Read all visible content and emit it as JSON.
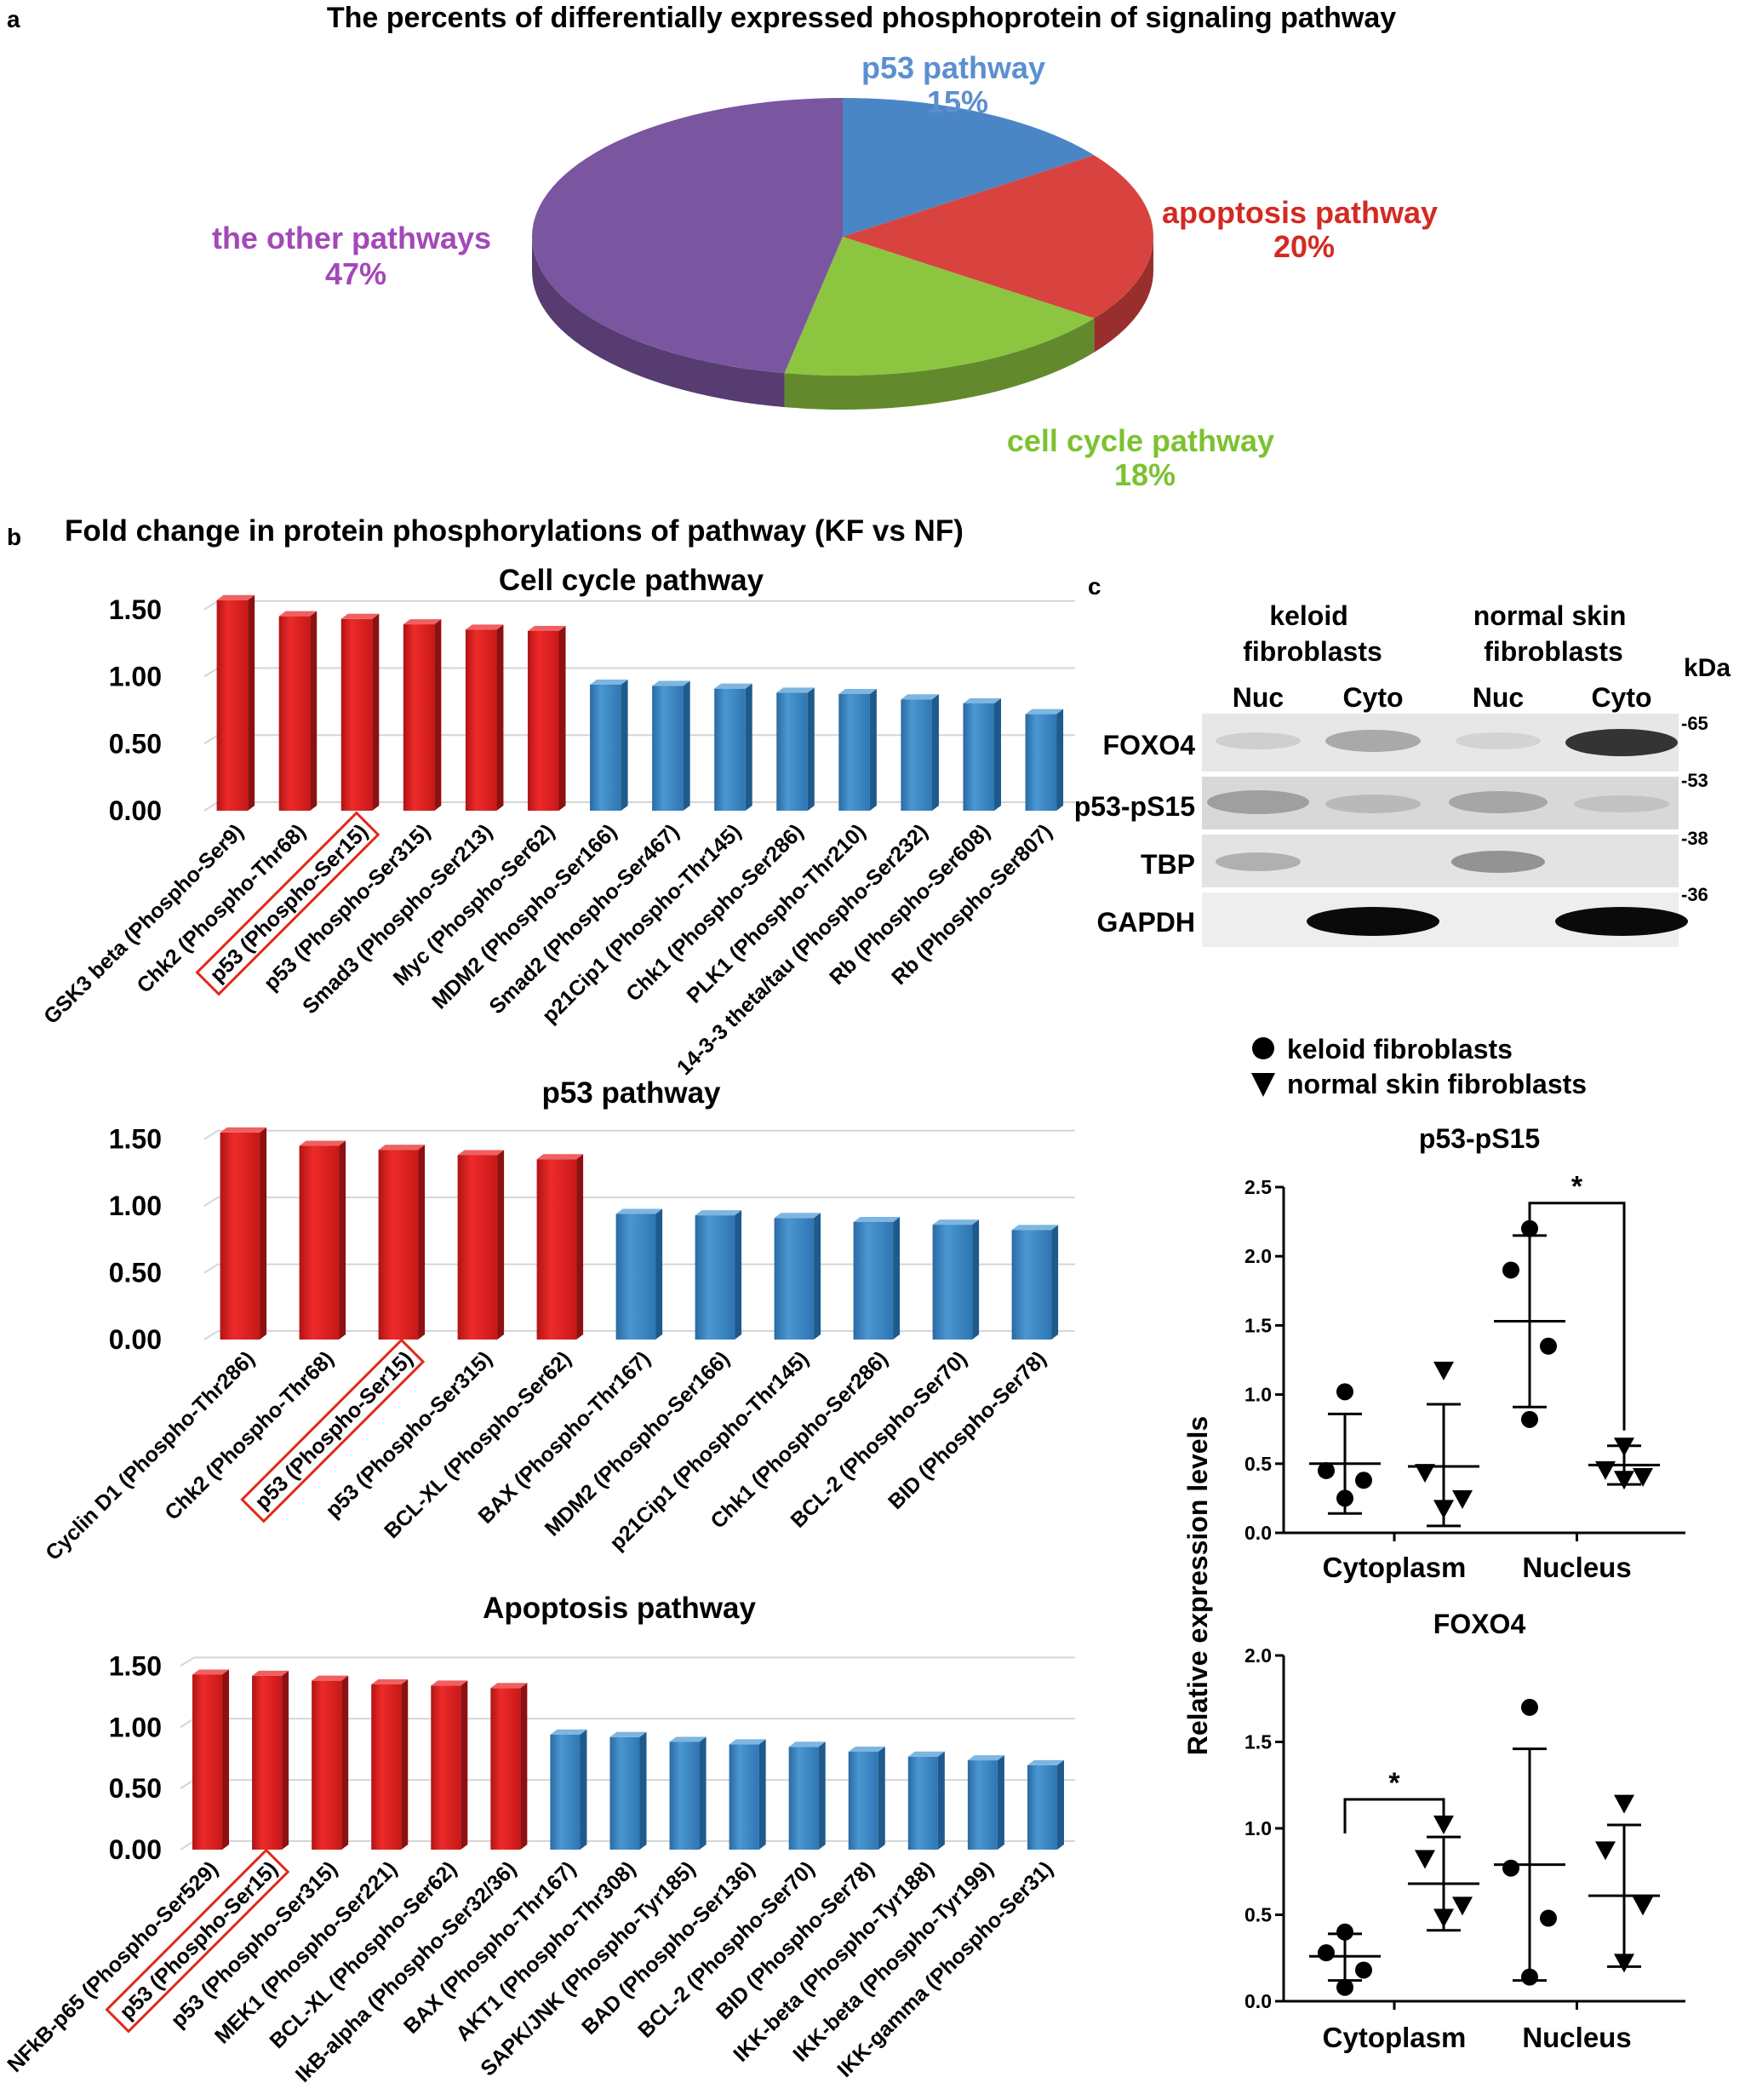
{
  "panel_a": {
    "letter": "a",
    "chart_data": {
      "type": "pie",
      "title": "The percents of differentially expressed phosphoprotein of signaling pathway",
      "slices": [
        {
          "label": "p53 pathway",
          "value": 15,
          "value_label": "15%",
          "color": "#4a86c5"
        },
        {
          "label": "apoptosis pathway",
          "value": 20,
          "value_label": "20%",
          "color": "#d9433f"
        },
        {
          "label": "cell cycle pathway",
          "value": 18,
          "value_label": "18%",
          "color": "#8cc540"
        },
        {
          "label": "the other pathways",
          "value": 47,
          "value_label": "47%",
          "color": "#7b56a0"
        }
      ]
    }
  },
  "panel_b": {
    "letter": "b",
    "heading": "Fold change in protein phosphorylations of pathway (KF vs NF)",
    "charts": [
      {
        "type": "bar",
        "title": "Cell cycle pathway",
        "yticks": [
          "0.00",
          "0.50",
          "1.00",
          "1.50"
        ],
        "ylim": [
          0,
          1.6
        ],
        "highlight_index": 2,
        "up_color": "#e02020",
        "down_color": "#3a87c4",
        "categories": [
          "GSK3 beta (Phospho-Ser9)",
          "Chk2 (Phospho-Thr68)",
          "p53 (Phospho-Ser15)",
          "p53 (Phospho-Ser315)",
          "Smad3 (Phospho-Ser213)",
          "Myc (Phospho-Ser62)",
          "MDM2 (Phospho-Ser166)",
          "Smad2 (Phospho-Ser467)",
          "p21Cip1 (Phospho-Thr145)",
          "Chk1 (Phospho-Ser286)",
          "PLK1 (Phospho-Thr210)",
          "14-3-3 theta/tau (Phospho-Ser232)",
          "Rb (Phospho-Ser608)",
          "Rb (Phospho-Ser807)"
        ],
        "values": [
          1.57,
          1.45,
          1.43,
          1.39,
          1.35,
          1.34,
          0.94,
          0.93,
          0.91,
          0.88,
          0.87,
          0.83,
          0.8,
          0.72
        ],
        "direction": [
          "up",
          "up",
          "up",
          "up",
          "up",
          "up",
          "down",
          "down",
          "down",
          "down",
          "down",
          "down",
          "down",
          "down"
        ]
      },
      {
        "type": "bar",
        "title": "p53 pathway",
        "yticks": [
          "0.00",
          "0.50",
          "1.00",
          "1.50"
        ],
        "ylim": [
          0,
          1.6
        ],
        "highlight_index": 2,
        "up_color": "#e02020",
        "down_color": "#3a87c4",
        "categories": [
          "Cyclin D1 (Phospho-Thr286)",
          "Chk2 (Phospho-Thr68)",
          "p53 (Phospho-Ser15)",
          "p53 (Phospho-Ser315)",
          "BCL-XL (Phospho-Ser62)",
          "BAX (Phospho-Thr167)",
          "MDM2 (Phospho-Ser166)",
          "p21Cip1 (Phospho-Thr145)",
          "Chk1 (Phospho-Ser286)",
          "BCL-2 (Phospho-Ser70)",
          "BID (Phospho-Ser78)"
        ],
        "values": [
          1.55,
          1.45,
          1.42,
          1.38,
          1.35,
          0.94,
          0.93,
          0.91,
          0.88,
          0.86,
          0.82
        ],
        "direction": [
          "up",
          "up",
          "up",
          "up",
          "up",
          "down",
          "down",
          "down",
          "down",
          "down",
          "down"
        ]
      },
      {
        "type": "bar",
        "title": "Apoptosis pathway",
        "yticks": [
          "0.00",
          "0.50",
          "1.00",
          "1.50"
        ],
        "ylim": [
          0,
          1.6
        ],
        "highlight_index": 1,
        "up_color": "#e02020",
        "down_color": "#3a87c4",
        "categories": [
          "NFkB-p65 (Phospho-Ser529)",
          "p53 (Phospho-Ser15)",
          "p53 (Phospho-Ser315)",
          "MEK1 (Phospho-Ser221)",
          "BCL-XL (Phospho-Ser62)",
          "IkB-alpha (Phospho-Ser32/36)",
          "BAX (Phospho-Thr167)",
          "AKT1 (Phospho-Thr308)",
          "SAPK/JNK (Phospho-Tyr185)",
          "BAD (Phospho-Ser136)",
          "BCL-2 (Phospho-Ser70)",
          "BID (Phospho-Ser78)",
          "IKK-beta (Phospho-Tyr188)",
          "IKK-beta (Phospho-Tyr199)",
          "IKK-gamma (Phospho-Ser31)"
        ],
        "values": [
          1.43,
          1.42,
          1.38,
          1.35,
          1.34,
          1.32,
          0.94,
          0.92,
          0.88,
          0.86,
          0.84,
          0.8,
          0.76,
          0.73,
          0.69
        ],
        "direction": [
          "up",
          "up",
          "up",
          "up",
          "up",
          "up",
          "down",
          "down",
          "down",
          "down",
          "down",
          "down",
          "down",
          "down",
          "down"
        ]
      }
    ]
  },
  "panel_c": {
    "letter": "c",
    "blot": {
      "groups": [
        "keloid\nfibroblasts",
        "normal skin\nfibroblasts"
      ],
      "lanes": [
        "Nuc",
        "Cyto",
        "Nuc",
        "Cyto"
      ],
      "rows": [
        "FOXO4",
        "p53-pS15",
        "TBP",
        "GAPDH"
      ],
      "kda_label": "kDa",
      "markers": [
        "-65",
        "-53",
        "-38",
        "-36"
      ]
    },
    "legend": {
      "items": [
        {
          "symbol": "circle",
          "label": "keloid fibroblasts"
        },
        {
          "symbol": "triangle",
          "label": "normal skin fibroblasts"
        }
      ]
    },
    "shared_ylabel": "Relative expression levels",
    "chart_data": [
      {
        "type": "scatter",
        "title": "p53-pS15",
        "ylim": [
          0,
          2.5
        ],
        "yticks": [
          "0.0",
          "0.5",
          "1.0",
          "1.5",
          "2.0",
          "2.5"
        ],
        "groups": [
          "Cytoplasm",
          "Nucleus"
        ],
        "series": [
          {
            "group": "Cytoplasm",
            "symbol": "circle",
            "points": [
              1.02,
              0.45,
              0.38,
              0.25
            ],
            "mean": 0.5,
            "sd_low": 0.14,
            "sd_high": 0.86
          },
          {
            "group": "Cytoplasm",
            "symbol": "triangle",
            "points": [
              1.17,
              0.43,
              0.24,
              0.17
            ],
            "mean": 0.48,
            "sd_low": 0.05,
            "sd_high": 0.93
          },
          {
            "group": "Nucleus",
            "symbol": "circle",
            "points": [
              2.2,
              1.9,
              1.35,
              0.82
            ],
            "mean": 1.53,
            "sd_low": 0.91,
            "sd_high": 2.15
          },
          {
            "group": "Nucleus",
            "symbol": "triangle",
            "points": [
              0.62,
              0.45,
              0.4,
              0.38
            ],
            "mean": 0.49,
            "sd_low": 0.35,
            "sd_high": 0.63
          }
        ],
        "significance": {
          "label": "*",
          "between": [
            2,
            3
          ]
        }
      },
      {
        "type": "scatter",
        "title": "FOXO4",
        "ylim": [
          0,
          2.0
        ],
        "yticks": [
          "0.0",
          "0.5",
          "1.0",
          "1.5",
          "2.0"
        ],
        "groups": [
          "Cytoplasm",
          "Nucleus"
        ],
        "series": [
          {
            "group": "Cytoplasm",
            "symbol": "circle",
            "points": [
              0.4,
              0.28,
              0.18,
              0.08
            ],
            "mean": 0.26,
            "sd_low": 0.12,
            "sd_high": 0.39
          },
          {
            "group": "Cytoplasm",
            "symbol": "triangle",
            "points": [
              1.02,
              0.82,
              0.55,
              0.48
            ],
            "mean": 0.68,
            "sd_low": 0.41,
            "sd_high": 0.95
          },
          {
            "group": "Nucleus",
            "symbol": "circle",
            "points": [
              1.7,
              0.77,
              0.48,
              0.14
            ],
            "mean": 0.79,
            "sd_low": 0.12,
            "sd_high": 1.46
          },
          {
            "group": "Nucleus",
            "symbol": "triangle",
            "points": [
              1.14,
              0.87,
              0.55,
              0.22
            ],
            "mean": 0.61,
            "sd_low": 0.2,
            "sd_high": 1.02
          }
        ],
        "significance": {
          "label": "*",
          "between": [
            0,
            1
          ]
        }
      }
    ]
  }
}
